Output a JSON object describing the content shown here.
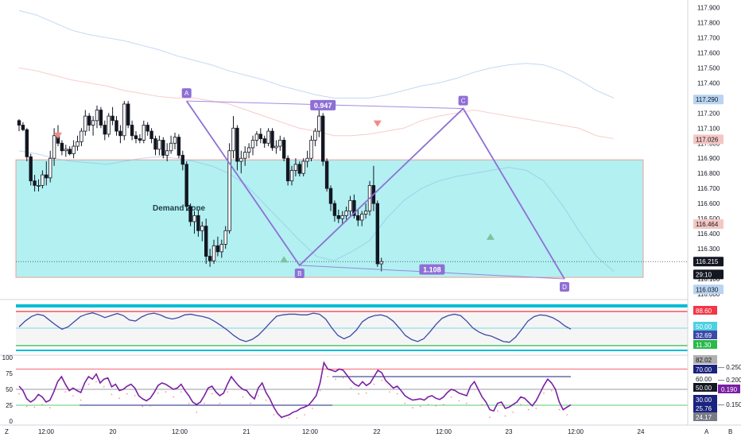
{
  "chart_data": [
    {
      "type": "candlestick",
      "panel": "price",
      "ylim": [
        116.0,
        117.95
      ],
      "y_ticks": [
        "117.900",
        "117.800",
        "117.700",
        "117.600",
        "117.500",
        "117.400",
        "117.300",
        "117.200",
        "117.100",
        "117.000",
        "116.900",
        "116.800",
        "116.700",
        "116.600",
        "116.500",
        "116.400",
        "116.300",
        "116.200",
        "116.100",
        "116.000"
      ],
      "x_ticks": [
        "12:00",
        "20",
        "12:00",
        "21",
        "12:00",
        "22",
        "12:00",
        "23",
        "12:00",
        "24"
      ],
      "zone": {
        "label": "Demand Zone",
        "top": 116.89,
        "bottom": 116.11,
        "color": "#b2f0f1"
      },
      "pattern_points": [
        {
          "label": "A",
          "t": 43,
          "price": 117.28
        },
        {
          "label": "B",
          "t": 72,
          "price": 116.19
        },
        {
          "label": "C",
          "t": 114,
          "price": 117.23
        },
        {
          "label": "D",
          "t": 140,
          "price": 116.1
        }
      ],
      "ratios": [
        {
          "label": "0.947",
          "t": 78,
          "price": 117.25
        },
        {
          "label": "1.108",
          "t": 106,
          "price": 116.16
        }
      ],
      "markers": [
        {
          "kind": "sell",
          "t": 10,
          "price": 117.05,
          "color": "#f28b82"
        },
        {
          "kind": "buy",
          "t": 68,
          "price": 116.23,
          "color": "#80c0a0"
        },
        {
          "kind": "sell",
          "t": 92,
          "price": 117.13,
          "color": "#f28b82"
        },
        {
          "kind": "buy",
          "t": 121,
          "price": 116.38,
          "color": "#80c0a0"
        }
      ],
      "price_labels": [
        {
          "text": "117.290",
          "price": 117.29,
          "bg": "#b8d4f0",
          "fg": "#131722"
        },
        {
          "text": "117.026",
          "price": 117.026,
          "bg": "#f4c7c3",
          "fg": "#131722"
        },
        {
          "text": "116.464",
          "price": 116.464,
          "bg": "#f4c7c3",
          "fg": "#131722"
        },
        {
          "text": "116.215",
          "price": 116.215,
          "bg": "#131722",
          "fg": "#ffffff"
        },
        {
          "text": "29:10",
          "price": 116.13,
          "bg": "#131722",
          "fg": "#ffffff"
        },
        {
          "text": "116.030",
          "price": 116.03,
          "bg": "#b8d4f0",
          "fg": "#131722"
        }
      ],
      "last_price": 116.215,
      "bands": {
        "blue_upper": [
          117.88,
          117.85,
          117.8,
          117.75,
          117.72,
          117.7,
          117.68,
          117.65,
          117.62,
          117.58,
          117.55,
          117.52,
          117.48,
          117.45,
          117.42,
          117.38,
          117.35,
          117.32,
          117.3,
          117.3,
          117.3,
          117.32,
          117.35,
          117.38,
          117.4,
          117.43,
          117.47,
          117.5,
          117.52,
          117.53,
          117.52,
          117.48,
          117.42,
          117.35,
          117.3
        ],
        "red_mid": [
          117.5,
          117.48,
          117.45,
          117.42,
          117.4,
          117.38,
          117.35,
          117.33,
          117.31,
          117.3,
          117.3,
          117.28,
          117.26,
          117.22,
          117.18,
          117.14,
          117.1,
          117.08,
          117.05,
          117.05,
          117.06,
          117.08,
          117.1,
          117.15,
          117.18,
          117.2,
          117.22,
          117.2,
          117.18,
          117.16,
          117.14,
          117.12,
          117.1,
          117.05,
          117.03
        ],
        "blue_lower": [
          116.95,
          116.93,
          116.9,
          116.88,
          116.87,
          116.86,
          116.88,
          116.9,
          116.91,
          116.9,
          116.88,
          116.85,
          116.8,
          116.72,
          116.6,
          116.48,
          116.36,
          116.25,
          116.22,
          116.28,
          116.35,
          116.5,
          116.62,
          116.7,
          116.75,
          116.78,
          116.8,
          116.82,
          116.84,
          116.82,
          116.75,
          116.6,
          116.42,
          116.25,
          116.15
        ]
      },
      "ohlc": [
        [
          117.15,
          117.16,
          117.08,
          117.12
        ],
        [
          117.12,
          117.14,
          117.08,
          117.09
        ],
        [
          117.09,
          117.1,
          116.88,
          116.91
        ],
        [
          116.91,
          116.93,
          116.72,
          116.75
        ],
        [
          116.75,
          116.79,
          116.68,
          116.72
        ],
        [
          116.72,
          116.76,
          116.68,
          116.72
        ],
        [
          116.72,
          116.82,
          116.7,
          116.79
        ],
        [
          116.79,
          116.88,
          116.72,
          116.77
        ],
        [
          116.77,
          116.95,
          116.74,
          116.9
        ],
        [
          116.9,
          117.1,
          116.85,
          117.05
        ],
        [
          117.05,
          117.12,
          116.98,
          117.0
        ],
        [
          117.0,
          117.02,
          116.92,
          116.95
        ],
        [
          116.95,
          116.99,
          116.91,
          116.96
        ],
        [
          116.96,
          116.98,
          116.92,
          116.93
        ],
        [
          116.93,
          117.02,
          116.9,
          116.98
        ],
        [
          116.98,
          117.05,
          116.95,
          117.01
        ],
        [
          117.01,
          117.1,
          116.98,
          117.08
        ],
        [
          117.08,
          117.22,
          117.05,
          117.18
        ],
        [
          117.18,
          117.2,
          117.08,
          117.12
        ],
        [
          117.12,
          117.18,
          117.05,
          117.15
        ],
        [
          117.15,
          117.25,
          117.1,
          117.22
        ],
        [
          117.22,
          117.24,
          117.1,
          117.12
        ],
        [
          117.12,
          117.15,
          117.02,
          117.06
        ],
        [
          117.06,
          117.2,
          117.04,
          117.18
        ],
        [
          117.18,
          117.24,
          117.12,
          117.15
        ],
        [
          117.15,
          117.18,
          117.05,
          117.08
        ],
        [
          117.08,
          117.12,
          117.0,
          117.05
        ],
        [
          117.05,
          117.28,
          117.02,
          117.26
        ],
        [
          117.26,
          117.28,
          117.1,
          117.12
        ],
        [
          117.12,
          117.15,
          117.02,
          117.05
        ],
        [
          117.05,
          117.08,
          117.0,
          117.03
        ],
        [
          117.03,
          117.06,
          117.0,
          117.02
        ],
        [
          117.02,
          117.15,
          117.0,
          117.12
        ],
        [
          117.12,
          117.14,
          117.05,
          117.08
        ],
        [
          117.08,
          117.1,
          117.0,
          117.03
        ],
        [
          117.03,
          117.05,
          116.92,
          116.96
        ],
        [
          116.96,
          117.05,
          116.92,
          117.02
        ],
        [
          117.02,
          117.04,
          116.9,
          116.92
        ],
        [
          116.92,
          117.0,
          116.88,
          116.95
        ],
        [
          116.95,
          117.05,
          116.93,
          117.0
        ],
        [
          117.0,
          117.07,
          116.96,
          117.04
        ],
        [
          117.04,
          117.06,
          116.9,
          116.92
        ],
        [
          116.92,
          116.95,
          116.82,
          116.86
        ],
        [
          116.86,
          116.88,
          116.55,
          116.58
        ],
        [
          116.58,
          116.6,
          116.45,
          116.48
        ],
        [
          116.48,
          116.55,
          116.4,
          116.52
        ],
        [
          116.52,
          116.56,
          116.38,
          116.42
        ],
        [
          116.42,
          116.48,
          116.35,
          116.45
        ],
        [
          116.45,
          116.5,
          116.2,
          116.25
        ],
        [
          116.25,
          116.3,
          116.18,
          116.22
        ],
        [
          116.22,
          116.36,
          116.2,
          116.32
        ],
        [
          116.32,
          116.38,
          116.25,
          116.28
        ],
        [
          116.28,
          116.36,
          116.24,
          116.33
        ],
        [
          116.33,
          116.45,
          116.3,
          116.42
        ],
        [
          116.42,
          117.0,
          116.4,
          116.95
        ],
        [
          116.95,
          117.18,
          116.9,
          117.1
        ],
        [
          117.1,
          117.12,
          116.82,
          116.88
        ],
        [
          116.88,
          116.95,
          116.8,
          116.9
        ],
        [
          116.9,
          116.98,
          116.85,
          116.94
        ],
        [
          116.94,
          117.0,
          116.9,
          116.97
        ],
        [
          116.97,
          117.05,
          116.92,
          117.02
        ],
        [
          117.02,
          117.08,
          116.98,
          117.06
        ],
        [
          117.06,
          117.1,
          117.0,
          117.03
        ],
        [
          117.03,
          117.05,
          116.97,
          117.0
        ],
        [
          117.0,
          117.1,
          116.98,
          117.08
        ],
        [
          117.08,
          117.1,
          116.95,
          116.97
        ],
        [
          116.97,
          117.02,
          116.93,
          116.98
        ],
        [
          116.98,
          117.05,
          116.95,
          117.02
        ],
        [
          117.02,
          117.04,
          116.88,
          116.9
        ],
        [
          116.9,
          116.92,
          116.72,
          116.75
        ],
        [
          116.75,
          116.85,
          116.72,
          116.82
        ],
        [
          116.82,
          116.9,
          116.78,
          116.86
        ],
        [
          116.86,
          116.88,
          116.78,
          116.8
        ],
        [
          116.8,
          116.9,
          116.78,
          116.88
        ],
        [
          116.88,
          116.95,
          116.84,
          116.9
        ],
        [
          116.9,
          117.05,
          116.88,
          117.02
        ],
        [
          117.02,
          117.1,
          116.98,
          117.08
        ],
        [
          117.08,
          117.22,
          117.04,
          117.18
        ],
        [
          117.18,
          117.2,
          116.85,
          116.88
        ],
        [
          116.88,
          116.9,
          116.68,
          116.7
        ],
        [
          116.7,
          116.72,
          116.55,
          116.6
        ],
        [
          116.6,
          116.62,
          116.48,
          116.52
        ],
        [
          116.52,
          116.56,
          116.47,
          116.5
        ],
        [
          116.5,
          116.55,
          116.46,
          116.52
        ],
        [
          116.52,
          116.58,
          116.48,
          116.55
        ],
        [
          116.55,
          116.65,
          116.52,
          116.62
        ],
        [
          116.62,
          116.66,
          116.5,
          116.52
        ],
        [
          116.52,
          116.56,
          116.45,
          116.49
        ],
        [
          116.49,
          116.55,
          116.45,
          116.53
        ],
        [
          116.53,
          116.6,
          116.5,
          116.55
        ],
        [
          116.55,
          116.75,
          116.52,
          116.72
        ],
        [
          116.72,
          116.85,
          116.55,
          116.6
        ],
        [
          116.6,
          116.62,
          116.18,
          116.2
        ],
        [
          116.2,
          116.24,
          116.15,
          116.215
        ]
      ]
    },
    {
      "type": "line",
      "panel": "oscillator",
      "levels": [
        {
          "name": "upper-red",
          "color": "#f23645"
        },
        {
          "name": "mid",
          "color": "#4dd0e1"
        },
        {
          "name": "low-green",
          "color": "#2ab94a"
        },
        {
          "name": "low-teal",
          "color": "#00bcd4"
        }
      ],
      "ylim": [
        0,
        100
      ],
      "y_ticks": [
        "88.60",
        "50.00",
        "32.69",
        "11.30"
      ],
      "values": [
        55,
        72,
        85,
        92,
        88,
        74,
        60,
        48,
        55,
        70,
        85,
        92,
        96,
        90,
        82,
        88,
        94,
        88,
        75,
        72,
        84,
        92,
        95,
        90,
        82,
        78,
        82,
        90,
        92,
        88,
        85,
        80,
        70,
        58,
        45,
        30,
        18,
        12,
        18,
        30,
        48,
        68,
        86,
        90,
        92,
        92,
        90,
        90,
        95,
        92,
        78,
        52,
        30,
        20,
        28,
        45,
        70,
        82,
        88,
        90,
        85,
        72,
        52,
        30,
        18,
        12,
        20,
        40,
        62,
        80,
        88,
        92,
        88,
        72,
        52,
        40,
        32,
        28,
        20,
        12,
        10,
        25,
        48,
        72,
        85,
        90,
        88,
        82,
        72,
        58,
        48
      ]
    },
    {
      "type": "line",
      "panel": "rsi",
      "ylim": [
        0,
        100
      ],
      "y_ticks": [
        "100",
        "75",
        "50",
        "25",
        "0"
      ],
      "right_ticks": [
        "82.02",
        "70.00",
        "60.00",
        "50.00",
        "30.00",
        "25.76",
        "24.17"
      ],
      "far_right_ticks": [
        "0.250",
        "0.200",
        "0.190",
        "0.150"
      ],
      "values": [
        55,
        48,
        35,
        30,
        34,
        42,
        38,
        30,
        33,
        46,
        62,
        70,
        58,
        48,
        52,
        48,
        45,
        60,
        70,
        66,
        74,
        60,
        66,
        68,
        54,
        58,
        48,
        50,
        55,
        58,
        52,
        40,
        35,
        32,
        36,
        45,
        56,
        60,
        58,
        54,
        50,
        52,
        58,
        48,
        40,
        30,
        26,
        30,
        40,
        52,
        55,
        46,
        40,
        44,
        58,
        70,
        62,
        55,
        50,
        48,
        40,
        35,
        52,
        60,
        45,
        35,
        22,
        12,
        6,
        8,
        10,
        14,
        16,
        20,
        22,
        25,
        32,
        40,
        60,
        92,
        82,
        80,
        78,
        82,
        80,
        72,
        64,
        58,
        55,
        62,
        56,
        60,
        70,
        80,
        76,
        64,
        58,
        52,
        55,
        48,
        40,
        36,
        33,
        34,
        35,
        33,
        38,
        40,
        36,
        34,
        38,
        45,
        50,
        48,
        44,
        42,
        40,
        55,
        62,
        50,
        38,
        30,
        18,
        16,
        28,
        30,
        20,
        22,
        26,
        30,
        38,
        36,
        30,
        24,
        32,
        44,
        56,
        66,
        60,
        50,
        30,
        18,
        22,
        25.76
      ],
      "upper_line": 82,
      "midline": 50,
      "lower_line": 25
    }
  ],
  "time_axis": {
    "labels": [
      "12:00",
      "20",
      "12:00",
      "21",
      "12:00",
      "22",
      "12:00",
      "23",
      "12:00",
      "24"
    ],
    "corner_left": "Z",
    "corner_right": [
      "A",
      "B"
    ]
  },
  "colors": {
    "up": "#ffffff",
    "down": "#131722",
    "pattern": "#8e6fd6",
    "zone": "#b2f0f1",
    "oscillator_line": "#3c4aa8",
    "rsi_line": "#7b1fa2"
  }
}
